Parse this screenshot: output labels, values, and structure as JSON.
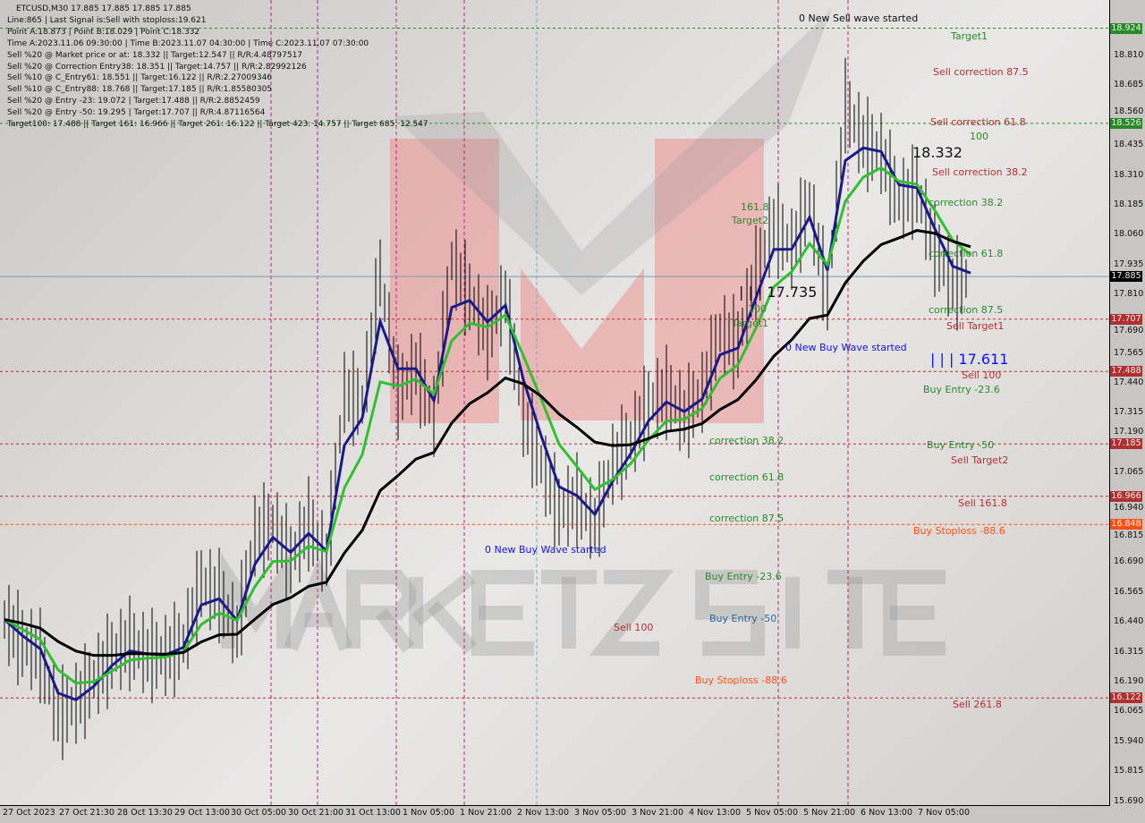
{
  "info": {
    "title": "ETCUSD,M30  17.885 17.885 17.885 17.885",
    "lines": [
      "Line:865 | Last Signal is:Sell with stoploss:19.621",
      "Point A:18.873 | Point B:18.029 | Point C:18.332",
      "Time A:2023.11.06 09:30:00 | Time B:2023.11.07 04:30:00 | Time C:2023.11.07 07:30:00",
      "Sell %20 @ Market price or at: 18.332 || Target:12.547 || R/R:4.48797517",
      "Sell %20 @ Correction Entry38: 18.351 || Target:14.757 || R/R:2.82992126",
      "Sell %10 @ C_Entry61: 18.551 || Target:16.122 || R/R:2.27009346",
      "Sell %10 @ C_Entry88: 18.768 || Target:17.185 || R/R:1.85580305",
      "Sell %20 @ Entry -23: 19.072 | Target:17.488 || R/R:2.8852459",
      "Sell %20 @ Entry -50: 19.295 | Target:17.707 || R/R:4.87116564",
      "Target100: 17.488 || Target 161: 16.966 || Target 261: 16.122 || Target 423: 14.757 || Target 685: 12.547"
    ]
  },
  "watermark": "MARKETZ SITE",
  "chart_data": {
    "type": "line",
    "symbol": "ETCUSD",
    "timeframe": "M30",
    "ylim": [
      15.69,
      18.93
    ],
    "y_ticks": [
      "18.810",
      "18.685",
      "18.560",
      "18.435",
      "18.310",
      "18.185",
      "18.060",
      "17.935",
      "17.810",
      "17.690",
      "17.565",
      "17.440",
      "17.315",
      "17.190",
      "17.065",
      "16.940",
      "16.815",
      "16.690",
      "16.565",
      "16.440",
      "16.315",
      "16.190",
      "16.065",
      "15.940",
      "15.815",
      "15.690"
    ],
    "x_ticks": [
      "27 Oct 2023",
      "27 Oct 21:30",
      "28 Oct 13:30",
      "29 Oct 13:00",
      "30 Oct 05:00",
      "30 Oct 21:00",
      "31 Oct 13:00",
      "1 Nov 05:00",
      "1 Nov 21:00",
      "2 Nov 13:00",
      "3 Nov 05:00",
      "3 Nov 21:00",
      "4 Nov 13:00",
      "5 Nov 05:00",
      "5 Nov 21:00",
      "6 Nov 13:00",
      "7 Nov 05:00"
    ],
    "current_price": {
      "value": "17.885",
      "color": "#000000"
    },
    "levels": [
      {
        "value": "18.924",
        "color": "#2a8a2a"
      },
      {
        "value": "18.526",
        "color": "#2a8a2a"
      },
      {
        "value": "17.707",
        "color": "#b03030"
      },
      {
        "value": "17.488",
        "color": "#b03030"
      },
      {
        "value": "17.185",
        "color": "#b03030"
      },
      {
        "value": "16.966",
        "color": "#b03030"
      },
      {
        "value": "16.848",
        "color": "#ff5010"
      },
      {
        "value": "16.122",
        "color": "#b03030"
      }
    ],
    "close_approx": [
      16.45,
      16.35,
      16.3,
      16.05,
      16.1,
      16.2,
      16.3,
      16.35,
      16.3,
      16.3,
      16.35,
      16.6,
      16.55,
      16.4,
      16.8,
      16.85,
      16.7,
      16.85,
      16.7,
      17.4,
      17.35,
      17.9,
      17.4,
      17.5,
      17.3,
      17.95,
      17.8,
      17.65,
      17.8,
      17.3,
      17.1,
      16.9,
      16.95,
      16.85,
      17.1,
      17.2,
      17.35,
      17.4,
      17.3,
      17.4,
      17.65,
      17.6,
      17.9,
      18.1,
      18.0,
      18.2,
      17.8,
      18.6,
      18.45,
      18.4,
      18.2,
      18.25,
      18.0,
      17.85,
      17.885
    ],
    "annotations": [
      {
        "text": "0 New Sell wave started",
        "color": "#111111"
      },
      {
        "text": "Target1",
        "color": "#2a8a2a"
      },
      {
        "text": "Sell correction 87.5",
        "color": "#b03030"
      },
      {
        "text": "Sell correction 61.8",
        "color": "#b03030"
      },
      {
        "text": "100",
        "color": "#2a8a2a"
      },
      {
        "text": "18.332",
        "color": "#111111"
      },
      {
        "text": "Sell correction 38.2",
        "color": "#b03030"
      },
      {
        "text": "correction 38.2",
        "color": "#2a8a2a"
      },
      {
        "text": "correction 61.8",
        "color": "#2a8a2a"
      },
      {
        "text": "correction 87.5",
        "color": "#2a8a2a"
      },
      {
        "text": "Sell Target1",
        "color": "#b03030"
      },
      {
        "text": "| | | 17.611",
        "color": "#1010ff"
      },
      {
        "text": "Sell 100",
        "color": "#b03030"
      },
      {
        "text": "Buy Entry -23.6",
        "color": "#2a8a2a"
      },
      {
        "text": "Buy Entry -50",
        "color": "#2a8a2a"
      },
      {
        "text": "Sell Target2",
        "color": "#b03030"
      },
      {
        "text": "Sell 161.8",
        "color": "#b03030"
      },
      {
        "text": "Buy Stoploss -88.6",
        "color": "#ff5010"
      },
      {
        "text": "Sell  261.8",
        "color": "#b03030"
      },
      {
        "text": "161.8",
        "color": "#2a8a2a"
      },
      {
        "text": "Target2",
        "color": "#2a8a2a"
      },
      {
        "text": "| | | 17.735",
        "color": "#111111"
      },
      {
        "text": "100",
        "color": "#2a8a2a"
      },
      {
        "text": "Target1",
        "color": "#2a8a2a"
      },
      {
        "text": "0 New Buy Wave started",
        "color": "#1010ff"
      },
      {
        "text": "correction 38.2",
        "color": "#2a8a2a"
      },
      {
        "text": "correction 61.8",
        "color": "#2a8a2a"
      },
      {
        "text": "correction 87.5",
        "color": "#2a8a2a"
      },
      {
        "text": "0 New Buy Wave started",
        "color": "#1010ff"
      },
      {
        "text": "Buy Entry -23.6",
        "color": "#2a8a2a"
      },
      {
        "text": "Buy Entry -50",
        "color": "#2a6a9a"
      },
      {
        "text": "Sell 100",
        "color": "#b03030"
      },
      {
        "text": "Buy Stoploss -88.6",
        "color": "#ff5010"
      }
    ]
  }
}
